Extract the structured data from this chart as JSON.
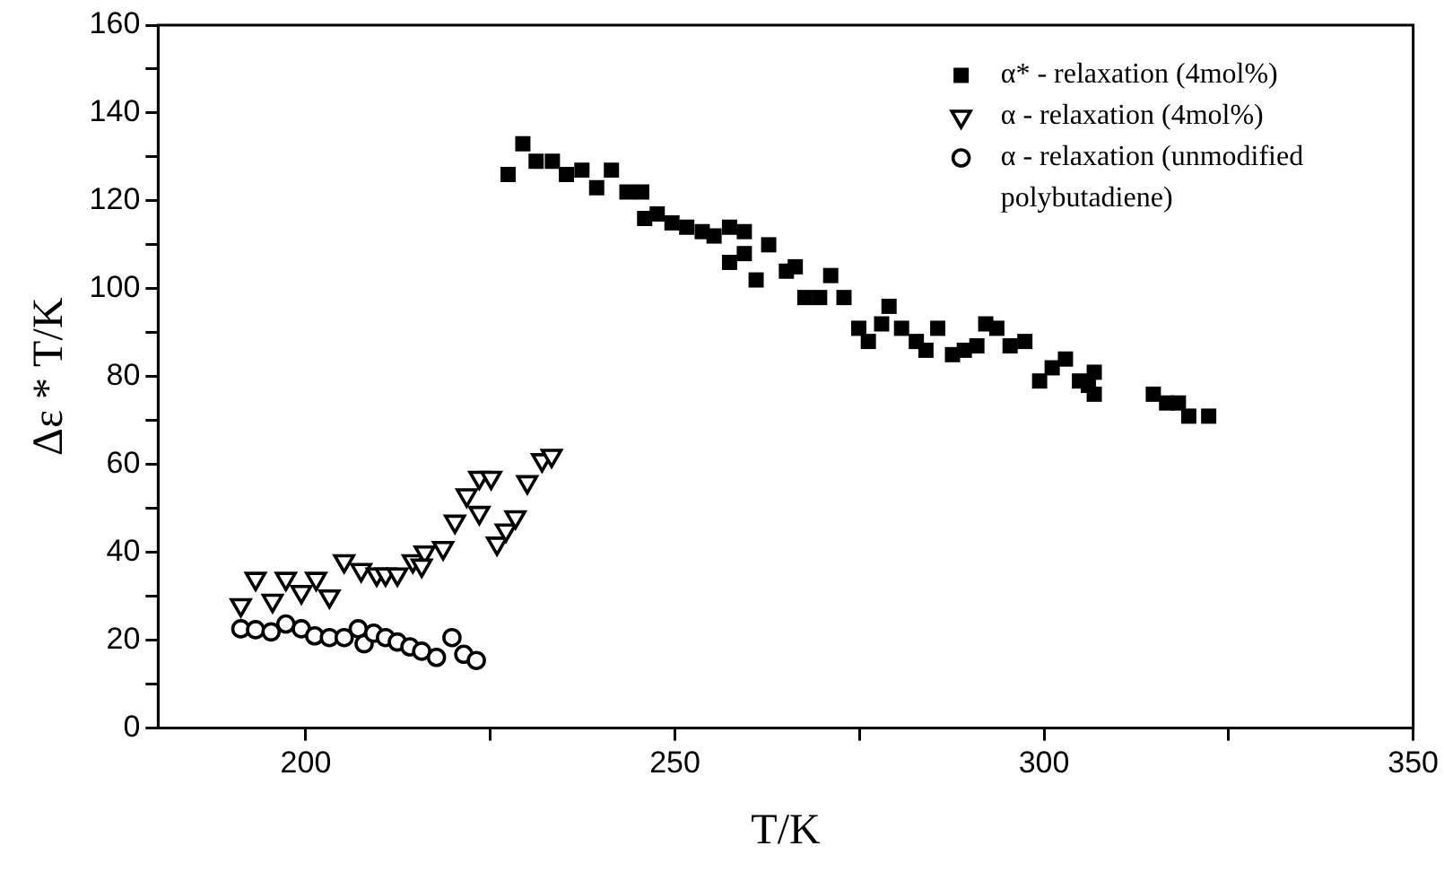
{
  "chart_data": {
    "type": "scatter",
    "xlabel": "T/K",
    "ylabel": "Δε * T/K",
    "xlim": [
      180,
      350
    ],
    "xticks": [
      {
        "value": 200,
        "label": "200"
      },
      {
        "value": 225,
        "label": null
      },
      {
        "value": 250,
        "label": "250"
      },
      {
        "value": 275,
        "label": null
      },
      {
        "value": 300,
        "label": "300"
      },
      {
        "value": 325,
        "label": null
      },
      {
        "value": 350,
        "label": "350"
      }
    ],
    "ylim": [
      0,
      160
    ],
    "yticks": [
      0,
      {
        "value": 10,
        "label": null
      },
      20,
      {
        "value": 30,
        "label": null
      },
      40,
      {
        "value": 50,
        "label": null
      },
      60,
      {
        "value": 70,
        "label": null
      },
      80,
      {
        "value": 90,
        "label": null
      },
      100,
      {
        "value": 110,
        "label": null
      },
      120,
      {
        "value": 130,
        "label": null
      },
      140,
      {
        "value": 150,
        "label": null
      },
      160
    ],
    "grid": false,
    "legend": "top right",
    "series": [
      {
        "name": "α* - relaxation (4mol%)",
        "color": "#000000",
        "marker": "square",
        "x": [
          227.4,
          229.4,
          231.2,
          233.4,
          235.3,
          237.4,
          239.4,
          241.4,
          243.5,
          245.5,
          245.9,
          247.6,
          249.6,
          251.6,
          253.7,
          255.3,
          257.4,
          259.4,
          257.4,
          259.4,
          261.0,
          262.7,
          265.1,
          266.3,
          267.6,
          269.6,
          271.1,
          272.9,
          274.9,
          276.2,
          278.0,
          279.0,
          280.7,
          282.7,
          284.0,
          285.6,
          287.6,
          289.2,
          290.9,
          292.1,
          293.6,
          295.4,
          297.4,
          299.4,
          301.1,
          302.9,
          304.8,
          306.8,
          306.8,
          306.0,
          314.8,
          316.6,
          318.2,
          319.6,
          322.3
        ],
        "values": [
          126,
          133,
          129,
          129,
          126,
          127,
          123,
          127,
          122,
          122,
          116,
          117,
          115,
          114,
          113,
          112,
          114,
          113,
          106,
          108,
          102,
          110,
          104,
          105,
          98,
          98,
          103,
          98,
          91,
          88,
          92,
          96,
          91,
          88,
          86,
          91,
          85,
          86,
          87,
          92,
          91,
          87,
          88,
          79,
          82,
          84,
          79,
          81,
          76,
          78,
          76,
          74,
          74,
          71,
          71
        ]
      },
      {
        "name": "α - relaxation (4mol%)",
        "color": "#000000",
        "marker": "triangle",
        "x": [
          191.2,
          193.2,
          195.5,
          197.3,
          199.4,
          201.4,
          203.2,
          205.2,
          207.5,
          209.6,
          210.8,
          212.4,
          214.5,
          216.1,
          218.6,
          215.7,
          220.2,
          221.8,
          223.5,
          223.5,
          225.1,
          225.9,
          227.1,
          228.4,
          230.0,
          232.0,
          233.3
        ],
        "values": [
          28,
          34,
          29,
          34,
          31,
          34,
          30,
          38,
          36,
          35,
          35,
          35,
          38,
          40,
          41,
          37,
          47,
          53,
          49,
          57,
          57,
          42,
          45,
          48,
          56,
          61,
          62
        ]
      },
      {
        "name": "α - relaxation (unmodified polybutadiene)",
        "color": "#000000",
        "marker": "circle",
        "x": [
          191.2,
          193.2,
          195.3,
          197.3,
          199.4,
          201.2,
          203.2,
          205.2,
          207.1,
          207.9,
          209.2,
          210.8,
          212.4,
          214.1,
          215.7,
          217.7,
          219.8,
          221.4,
          223.1
        ],
        "values": [
          22.6,
          22.4,
          21.9,
          23.7,
          22.6,
          21.0,
          20.6,
          20.6,
          22.6,
          19.2,
          21.6,
          20.6,
          19.6,
          18.5,
          17.5,
          16.1,
          20.6,
          16.8,
          15.4
        ]
      }
    ]
  }
}
